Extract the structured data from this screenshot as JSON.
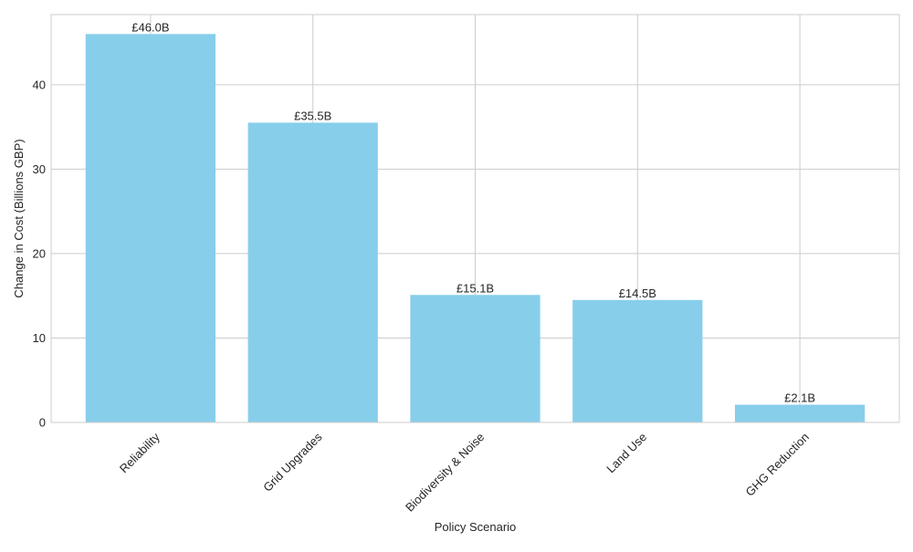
{
  "chart_data": {
    "type": "bar",
    "categories": [
      "Reliability",
      "Grid Upgrades",
      "Biodiversity & Noise",
      "Land Use",
      "GHG Reduction"
    ],
    "values": [
      46.0,
      35.5,
      15.1,
      14.5,
      2.1
    ],
    "data_labels": [
      "£46.0B",
      "£35.5B",
      "£15.1B",
      "£14.5B",
      "£2.1B"
    ],
    "title": "",
    "xlabel": "Policy Scenario",
    "ylabel": "Change in Cost (Billions GBP)",
    "ylim": [
      0,
      48.3
    ],
    "yticks": [
      0,
      10,
      20,
      30,
      40
    ],
    "grid": true,
    "bar_color": "#87CEEB",
    "grid_color": "#cccccc",
    "frame_color": "#cccccc"
  }
}
